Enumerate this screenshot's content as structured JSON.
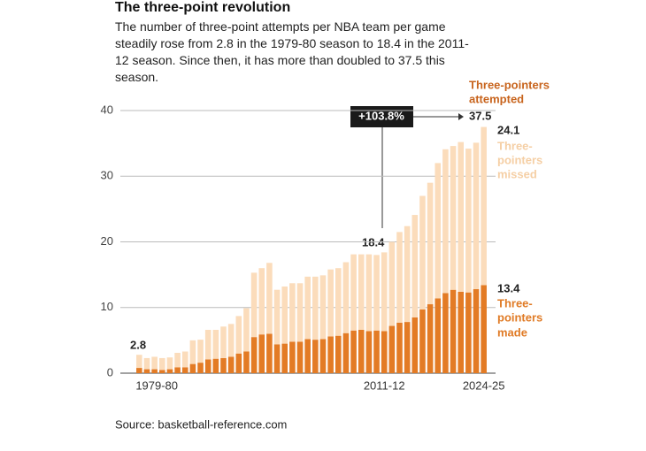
{
  "chart_data": {
    "type": "stacked_bar",
    "title": "The three-point revolution",
    "subtitle": "The number of three-point attempts per NBA team per game steadily rose from 2.8 in the 1979-80 season to 18.4 in the 2011-12 season. Since then, it has more than doubled to 37.5 this season.",
    "source": "Source: basketball-reference.com",
    "categories": [
      "1979-80",
      null,
      null,
      null,
      null,
      null,
      null,
      null,
      null,
      null,
      null,
      null,
      null,
      null,
      null,
      null,
      null,
      null,
      null,
      null,
      null,
      null,
      null,
      null,
      null,
      null,
      null,
      null,
      null,
      null,
      null,
      null,
      "2011-12",
      null,
      null,
      null,
      null,
      null,
      null,
      null,
      null,
      null,
      null,
      null,
      null,
      "2024-25"
    ],
    "series": [
      {
        "label": [
          "Three-",
          "pointers",
          "made"
        ],
        "color": "#e37b25",
        "values": [
          0.8,
          0.6,
          0.6,
          0.5,
          0.6,
          0.9,
          0.9,
          1.4,
          1.6,
          2.1,
          2.2,
          2.3,
          2.5,
          3.0,
          3.3,
          5.5,
          5.9,
          6.0,
          4.4,
          4.5,
          4.8,
          4.8,
          5.2,
          5.1,
          5.2,
          5.6,
          5.7,
          6.1,
          6.5,
          6.6,
          6.4,
          6.5,
          6.4,
          7.2,
          7.7,
          7.8,
          8.5,
          9.7,
          10.5,
          11.4,
          12.2,
          12.7,
          12.4,
          12.3,
          12.8,
          13.4
        ]
      },
      {
        "label": [
          "Three-",
          "pointers",
          "missed"
        ],
        "color": "#fbdcbb",
        "values": [
          2.0,
          1.7,
          1.9,
          1.8,
          1.8,
          2.2,
          2.4,
          3.6,
          3.5,
          4.5,
          4.4,
          4.8,
          5.0,
          5.7,
          6.6,
          9.8,
          10.1,
          10.8,
          8.3,
          8.7,
          8.9,
          8.9,
          9.5,
          9.6,
          9.7,
          10.2,
          10.3,
          10.8,
          11.6,
          11.5,
          11.7,
          11.5,
          12.0,
          12.8,
          13.8,
          14.6,
          15.6,
          17.3,
          18.5,
          20.6,
          21.9,
          21.9,
          22.8,
          21.9,
          22.3,
          24.1
        ]
      }
    ],
    "attempted_label": [
      "Three-pointers",
      "attempted"
    ],
    "annotations": [
      "2.8",
      "18.4",
      "37.5",
      "+103.8%",
      "24.1",
      "13.4"
    ],
    "ylim": [
      0,
      40
    ],
    "yticks": [
      0,
      10,
      20,
      30,
      40
    ],
    "grid": true
  }
}
